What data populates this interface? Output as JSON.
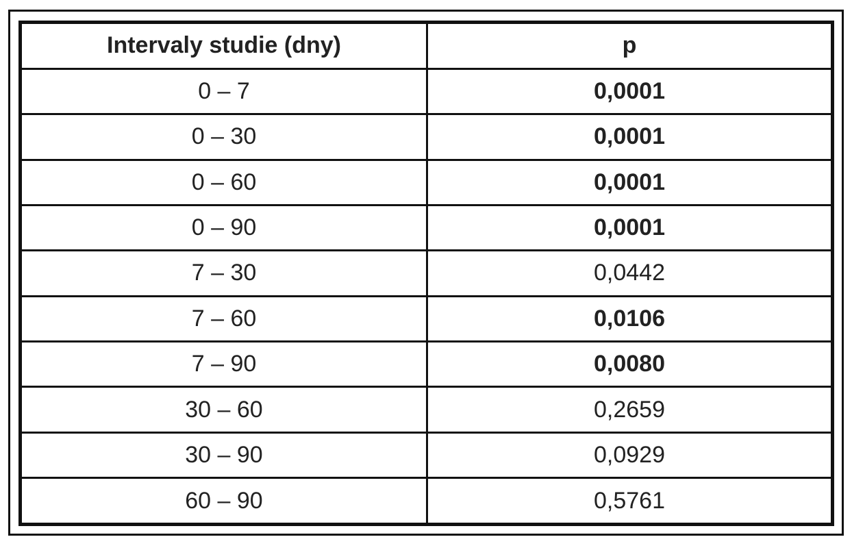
{
  "table": {
    "header": [
      "Intervaly studie (dny)",
      "p"
    ],
    "rows": [
      [
        "0 – 7",
        "0,0001"
      ],
      [
        "0 – 30",
        "0,0001"
      ],
      [
        "0 – 60",
        "0,0001"
      ],
      [
        "0 – 90",
        "0,0001"
      ],
      [
        "7 – 30",
        "0,0442"
      ],
      [
        "7 – 60",
        "0,0106"
      ],
      [
        "7 – 90",
        "0,0080"
      ],
      [
        "30 – 60",
        "0,2659"
      ],
      [
        "30 – 90",
        "0,0929"
      ],
      [
        "60 – 90",
        "0,5761"
      ]
    ]
  }
}
